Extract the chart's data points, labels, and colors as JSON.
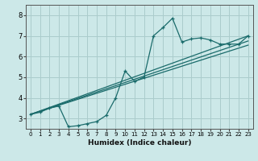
{
  "xlabel": "Humidex (Indice chaleur)",
  "bg_color": "#cce8e8",
  "grid_color": "#aacccc",
  "line_color": "#1a6b6b",
  "xlim": [
    -0.5,
    23.5
  ],
  "ylim": [
    2.5,
    8.5
  ],
  "xticks": [
    0,
    1,
    2,
    3,
    4,
    5,
    6,
    7,
    8,
    9,
    10,
    11,
    12,
    13,
    14,
    15,
    16,
    17,
    18,
    19,
    20,
    21,
    22,
    23
  ],
  "yticks": [
    3,
    4,
    5,
    6,
    7,
    8
  ],
  "line1_x": [
    0,
    1,
    2,
    3,
    4,
    5,
    6,
    7,
    8,
    9,
    10,
    11,
    12,
    13,
    14,
    15,
    16,
    17,
    18,
    19,
    20,
    21,
    22,
    23
  ],
  "line1_y": [
    3.2,
    3.3,
    3.5,
    3.6,
    2.6,
    2.65,
    2.75,
    2.85,
    3.15,
    4.0,
    5.3,
    4.8,
    5.0,
    7.0,
    7.4,
    7.85,
    6.7,
    6.85,
    6.9,
    6.8,
    6.6,
    6.6,
    6.6,
    7.0
  ],
  "line2_x": [
    0,
    23
  ],
  "line2_y": [
    3.2,
    7.0
  ],
  "line3_x": [
    0,
    23
  ],
  "line3_y": [
    3.2,
    6.55
  ],
  "line4_x": [
    0,
    23
  ],
  "line4_y": [
    3.2,
    6.75
  ]
}
